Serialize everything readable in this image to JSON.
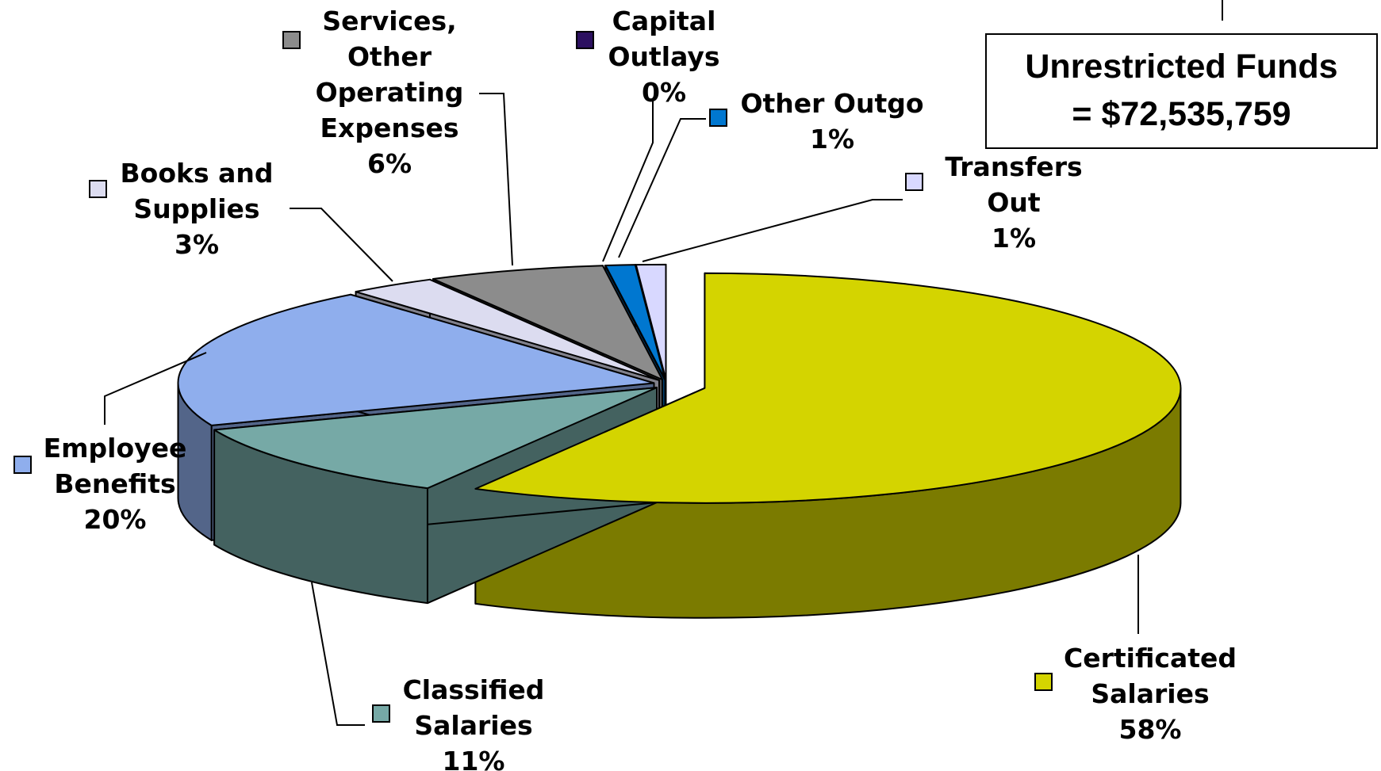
{
  "chart_data": {
    "type": "pie",
    "categories": [
      "Certificated Salaries",
      "Classified Salaries",
      "Employee Benefits",
      "Books and Supplies",
      "Services, Other Operating Expenses",
      "Capital Outlays",
      "Other Outgo",
      "Transfers Out"
    ],
    "values": [
      58,
      11,
      20,
      3,
      6,
      0,
      1,
      1
    ],
    "value_labels": [
      "58%",
      "11%",
      "20%",
      "3%",
      "6%",
      "0%",
      "1%",
      "1%"
    ],
    "colors": [
      "#d4d400",
      "#76a9a6",
      "#8faeed",
      "#dcdcf0",
      "#8c8c8c",
      "#2c1060",
      "#0077d0",
      "#d8d8ff"
    ],
    "annotation": [
      "Unrestricted Funds",
      "= $72,535,759"
    ]
  }
}
